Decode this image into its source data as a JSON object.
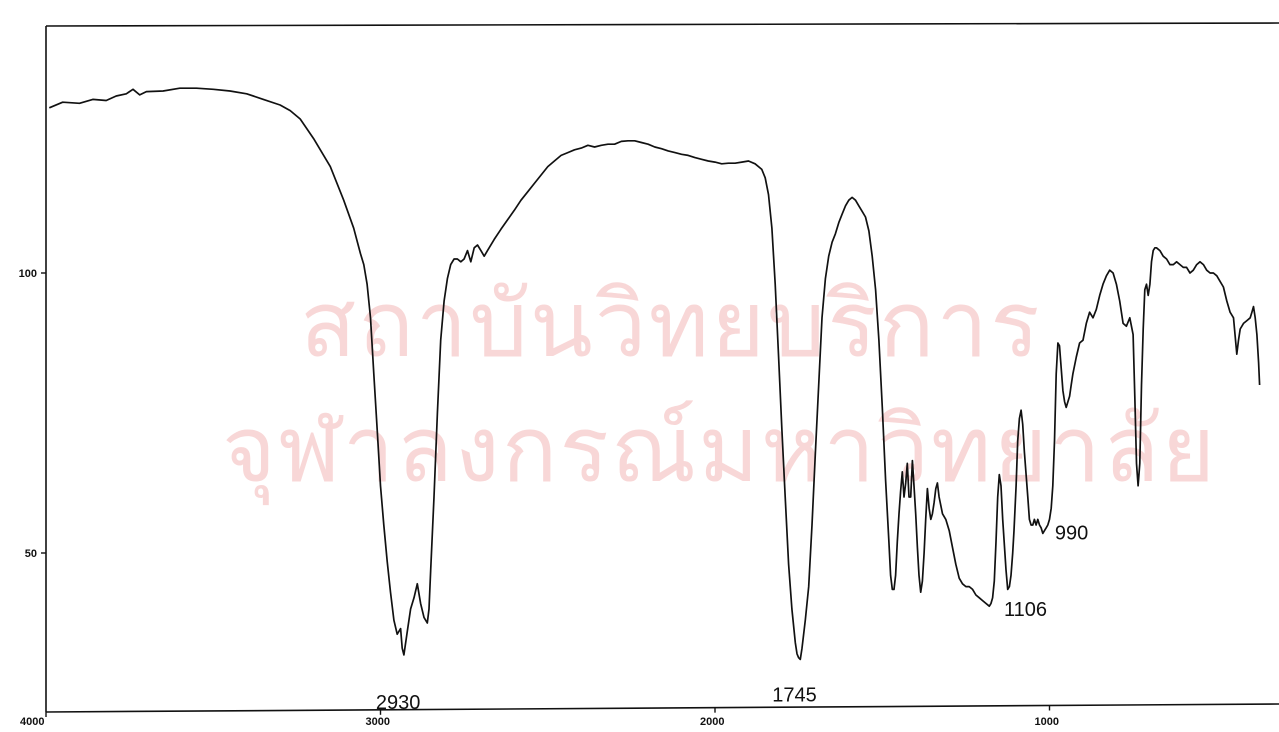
{
  "colors": {
    "trace": "#111111",
    "axis": "#111111",
    "background": "#ffffff",
    "watermark": "#f3b8b8"
  },
  "watermark": {
    "line1": "สถาบันวิทยบริการ",
    "line2": "จุฬาลงกรณ์มหาวิทยาลัย"
  },
  "chart_data": {
    "type": "line",
    "title": "",
    "xlabel": "",
    "ylabel": "",
    "x_reversed": true,
    "xlim": [
      4000,
      370
    ],
    "ylim": [
      27,
      144
    ],
    "grid": false,
    "x_ticks": [
      4000,
      3000,
      2000,
      1000
    ],
    "x_tick_labels": [
      "4000",
      "3000",
      "2000",
      "1000"
    ],
    "y_ticks": [
      100,
      50
    ],
    "y_tick_labels": [
      "100",
      "50"
    ],
    "peak_labels": [
      {
        "text": "2930",
        "x": 2930,
        "y": 30
      },
      {
        "text": "1745",
        "x": 1745,
        "y": 31
      },
      {
        "text": "1106",
        "x": 1106,
        "y": 40
      },
      {
        "text": "990",
        "x": 990,
        "y": 54
      }
    ],
    "series": [
      {
        "values": [
          [
            3990,
            129.5
          ],
          [
            3950,
            130.5
          ],
          [
            3900,
            130.3
          ],
          [
            3860,
            131
          ],
          [
            3820,
            130.8
          ],
          [
            3790,
            131.6
          ],
          [
            3760,
            132
          ],
          [
            3740,
            132.8
          ],
          [
            3720,
            131.8
          ],
          [
            3700,
            132.4
          ],
          [
            3650,
            132.5
          ],
          [
            3600,
            133
          ],
          [
            3550,
            133
          ],
          [
            3500,
            132.8
          ],
          [
            3450,
            132.5
          ],
          [
            3400,
            132
          ],
          [
            3350,
            131
          ],
          [
            3300,
            130
          ],
          [
            3270,
            129
          ],
          [
            3240,
            127.5
          ],
          [
            3200,
            124
          ],
          [
            3150,
            119
          ],
          [
            3110,
            113
          ],
          [
            3080,
            108
          ],
          [
            3060,
            103.5
          ],
          [
            3050,
            101.5
          ],
          [
            3040,
            98
          ],
          [
            3030,
            92
          ],
          [
            3020,
            82
          ],
          [
            3010,
            72
          ],
          [
            3000,
            62
          ],
          [
            2990,
            55
          ],
          [
            2980,
            48.5
          ],
          [
            2970,
            43
          ],
          [
            2960,
            38
          ],
          [
            2950,
            35.5
          ],
          [
            2940,
            36.5
          ],
          [
            2935,
            33
          ],
          [
            2930,
            31.8
          ],
          [
            2920,
            36
          ],
          [
            2910,
            40
          ],
          [
            2900,
            42
          ],
          [
            2890,
            44.5
          ],
          [
            2880,
            41
          ],
          [
            2870,
            38.5
          ],
          [
            2860,
            37.5
          ],
          [
            2855,
            40
          ],
          [
            2850,
            47
          ],
          [
            2840,
            60
          ],
          [
            2830,
            75
          ],
          [
            2820,
            88
          ],
          [
            2810,
            95
          ],
          [
            2800,
            99
          ],
          [
            2790,
            101.5
          ],
          [
            2780,
            102.5
          ],
          [
            2770,
            102.5
          ],
          [
            2760,
            102
          ],
          [
            2750,
            102.5
          ],
          [
            2740,
            104
          ],
          [
            2730,
            102
          ],
          [
            2720,
            104.5
          ],
          [
            2710,
            105
          ],
          [
            2700,
            104
          ],
          [
            2690,
            103
          ],
          [
            2680,
            104
          ],
          [
            2660,
            106
          ],
          [
            2640,
            107.8
          ],
          [
            2620,
            109.5
          ],
          [
            2600,
            111.2
          ],
          [
            2580,
            113
          ],
          [
            2560,
            114.5
          ],
          [
            2540,
            116
          ],
          [
            2520,
            117.5
          ],
          [
            2500,
            119
          ],
          [
            2480,
            120
          ],
          [
            2460,
            121
          ],
          [
            2440,
            121.5
          ],
          [
            2420,
            122
          ],
          [
            2400,
            122.3
          ],
          [
            2380,
            122.8
          ],
          [
            2360,
            122.5
          ],
          [
            2340,
            122.8
          ],
          [
            2320,
            123
          ],
          [
            2300,
            123
          ],
          [
            2280,
            123.5
          ],
          [
            2260,
            123.6
          ],
          [
            2240,
            123.6
          ],
          [
            2220,
            123.3
          ],
          [
            2200,
            123
          ],
          [
            2180,
            122.5
          ],
          [
            2160,
            122.2
          ],
          [
            2140,
            121.8
          ],
          [
            2120,
            121.5
          ],
          [
            2100,
            121.2
          ],
          [
            2080,
            121
          ],
          [
            2060,
            120.6
          ],
          [
            2040,
            120.3
          ],
          [
            2020,
            120
          ],
          [
            2000,
            119.8
          ],
          [
            1980,
            119.5
          ],
          [
            1960,
            119.6
          ],
          [
            1940,
            119.6
          ],
          [
            1920,
            119.8
          ],
          [
            1900,
            120
          ],
          [
            1880,
            119.5
          ],
          [
            1860,
            118.5
          ],
          [
            1850,
            117
          ],
          [
            1840,
            114
          ],
          [
            1830,
            108
          ],
          [
            1820,
            98
          ],
          [
            1810,
            85
          ],
          [
            1800,
            72
          ],
          [
            1790,
            60
          ],
          [
            1780,
            48
          ],
          [
            1770,
            40
          ],
          [
            1760,
            34
          ],
          [
            1755,
            32
          ],
          [
            1750,
            31.3
          ],
          [
            1745,
            31
          ],
          [
            1740,
            33
          ],
          [
            1730,
            38
          ],
          [
            1720,
            44
          ],
          [
            1710,
            55
          ],
          [
            1700,
            68
          ],
          [
            1690,
            80
          ],
          [
            1680,
            92
          ],
          [
            1670,
            99
          ],
          [
            1660,
            103
          ],
          [
            1650,
            105.5
          ],
          [
            1640,
            107
          ],
          [
            1630,
            109
          ],
          [
            1620,
            110.5
          ],
          [
            1610,
            112
          ],
          [
            1600,
            113
          ],
          [
            1590,
            113.5
          ],
          [
            1580,
            113
          ],
          [
            1570,
            112
          ],
          [
            1560,
            111
          ],
          [
            1550,
            110
          ],
          [
            1540,
            107.5
          ],
          [
            1530,
            103
          ],
          [
            1520,
            97
          ],
          [
            1510,
            88
          ],
          [
            1500,
            76
          ],
          [
            1490,
            63
          ],
          [
            1480,
            52
          ],
          [
            1475,
            46
          ],
          [
            1470,
            43.5
          ],
          [
            1465,
            43.5
          ],
          [
            1460,
            46
          ],
          [
            1455,
            52
          ],
          [
            1450,
            57
          ],
          [
            1445,
            61
          ],
          [
            1440,
            64.5
          ],
          [
            1435,
            60
          ],
          [
            1430,
            62.5
          ],
          [
            1425,
            66
          ],
          [
            1420,
            60
          ],
          [
            1415,
            60
          ],
          [
            1410,
            66.5
          ],
          [
            1405,
            62
          ],
          [
            1400,
            57
          ],
          [
            1395,
            51
          ],
          [
            1390,
            46
          ],
          [
            1385,
            43
          ],
          [
            1380,
            45
          ],
          [
            1375,
            50
          ],
          [
            1370,
            56
          ],
          [
            1365,
            61.5
          ],
          [
            1360,
            58
          ],
          [
            1355,
            56
          ],
          [
            1350,
            57
          ],
          [
            1345,
            59
          ],
          [
            1340,
            61.5
          ],
          [
            1335,
            62.5
          ],
          [
            1330,
            60
          ],
          [
            1320,
            57
          ],
          [
            1310,
            56
          ],
          [
            1300,
            54
          ],
          [
            1290,
            51
          ],
          [
            1280,
            48
          ],
          [
            1270,
            45.5
          ],
          [
            1260,
            44.5
          ],
          [
            1250,
            44
          ],
          [
            1240,
            44
          ],
          [
            1230,
            43.5
          ],
          [
            1220,
            42.5
          ],
          [
            1210,
            42
          ],
          [
            1200,
            41.5
          ],
          [
            1190,
            41
          ],
          [
            1180,
            40.5
          ],
          [
            1175,
            41
          ],
          [
            1170,
            42
          ],
          [
            1165,
            45
          ],
          [
            1160,
            52
          ],
          [
            1155,
            60
          ],
          [
            1150,
            64
          ],
          [
            1145,
            62
          ],
          [
            1140,
            56
          ],
          [
            1130,
            47
          ],
          [
            1125,
            43.5
          ],
          [
            1120,
            44
          ],
          [
            1115,
            46
          ],
          [
            1110,
            50
          ],
          [
            1106,
            54
          ],
          [
            1100,
            62
          ],
          [
            1095,
            70
          ],
          [
            1090,
            74
          ],
          [
            1085,
            75.5
          ],
          [
            1080,
            73
          ],
          [
            1075,
            68
          ],
          [
            1070,
            64
          ],
          [
            1065,
            60
          ],
          [
            1060,
            56
          ],
          [
            1055,
            55
          ],
          [
            1050,
            55
          ],
          [
            1045,
            56
          ],
          [
            1040,
            55
          ],
          [
            1035,
            56
          ],
          [
            1030,
            55
          ],
          [
            1025,
            54.5
          ],
          [
            1020,
            53.5
          ],
          [
            1015,
            54
          ],
          [
            1010,
            54.5
          ],
          [
            1005,
            55
          ],
          [
            1000,
            56
          ],
          [
            995,
            58
          ],
          [
            990,
            62
          ],
          [
            985,
            70
          ],
          [
            980,
            82
          ],
          [
            975,
            87.5
          ],
          [
            970,
            87
          ],
          [
            965,
            83
          ],
          [
            960,
            79
          ],
          [
            955,
            77
          ],
          [
            950,
            76
          ],
          [
            945,
            77
          ],
          [
            940,
            78
          ],
          [
            935,
            80
          ],
          [
            930,
            82
          ],
          [
            920,
            85
          ],
          [
            910,
            87.5
          ],
          [
            900,
            88
          ],
          [
            890,
            91
          ],
          [
            880,
            93
          ],
          [
            870,
            92
          ],
          [
            860,
            93.5
          ],
          [
            850,
            96
          ],
          [
            840,
            98
          ],
          [
            830,
            99.5
          ],
          [
            820,
            100.5
          ],
          [
            810,
            100
          ],
          [
            800,
            98
          ],
          [
            790,
            95
          ],
          [
            780,
            91
          ],
          [
            770,
            90.5
          ],
          [
            760,
            92
          ],
          [
            750,
            89
          ],
          [
            745,
            78
          ],
          [
            740,
            66
          ],
          [
            735,
            62
          ],
          [
            730,
            66
          ],
          [
            725,
            80
          ],
          [
            720,
            90
          ],
          [
            715,
            97
          ],
          [
            710,
            98
          ],
          [
            705,
            96
          ],
          [
            700,
            98
          ],
          [
            695,
            102
          ],
          [
            690,
            104
          ],
          [
            685,
            104.5
          ],
          [
            680,
            104.5
          ],
          [
            670,
            104
          ],
          [
            660,
            103
          ],
          [
            650,
            102.5
          ],
          [
            640,
            101.5
          ],
          [
            630,
            101.5
          ],
          [
            620,
            102
          ],
          [
            610,
            101.5
          ],
          [
            600,
            101
          ],
          [
            590,
            101
          ],
          [
            580,
            100
          ],
          [
            570,
            100.5
          ],
          [
            560,
            101.5
          ],
          [
            550,
            102
          ],
          [
            540,
            101.5
          ],
          [
            530,
            100.5
          ],
          [
            520,
            100
          ],
          [
            510,
            100
          ],
          [
            500,
            99.5
          ],
          [
            490,
            98.5
          ],
          [
            480,
            97.5
          ],
          [
            470,
            95
          ],
          [
            460,
            93
          ],
          [
            450,
            92
          ],
          [
            440,
            85.5
          ],
          [
            435,
            88
          ],
          [
            430,
            90
          ],
          [
            420,
            91
          ],
          [
            410,
            91.5
          ],
          [
            400,
            92
          ],
          [
            395,
            93
          ],
          [
            390,
            94
          ],
          [
            385,
            92
          ],
          [
            380,
            89
          ],
          [
            375,
            84
          ],
          [
            372,
            80
          ]
        ]
      }
    ]
  }
}
